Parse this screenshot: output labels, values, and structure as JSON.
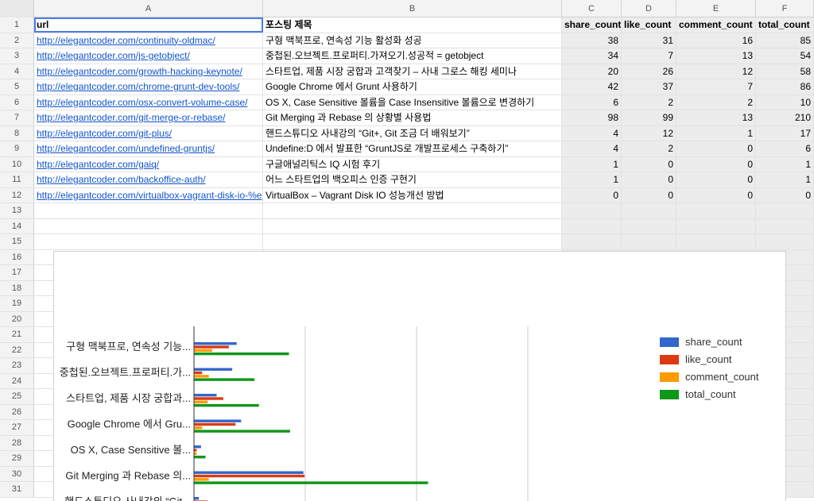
{
  "columns": [
    "A",
    "B",
    "C",
    "D",
    "E",
    "F"
  ],
  "headers": {
    "url": "url",
    "title": "포스팅 제목",
    "share_count": "share_count",
    "like_count": "like_count",
    "comment_count": "comment_count",
    "total_count": "total_count"
  },
  "rows": [
    {
      "url": "http://elegantcoder.com/continuity-oldmac/",
      "title": "구형 맥북프로, 연속성 기능 활성화 성공",
      "share": 38,
      "like": 31,
      "comment": 16,
      "total": 85
    },
    {
      "url": "http://elegantcoder.com/js-getobject/",
      "title": "중첩된.오브젝트.프로퍼티.가져오기.성공적 = getobject",
      "share": 34,
      "like": 7,
      "comment": 13,
      "total": 54
    },
    {
      "url": "http://elegantcoder.com/growth-hacking-keynote/",
      "title": "스타트업, 제품 시장 궁합과 고객찾기 – 사내 그로스 해킹 세미나",
      "share": 20,
      "like": 26,
      "comment": 12,
      "total": 58
    },
    {
      "url": "http://elegantcoder.com/chrome-grunt-dev-tools/",
      "title": "Google Chrome 에서 Grunt 사용하기",
      "share": 42,
      "like": 37,
      "comment": 7,
      "total": 86
    },
    {
      "url": "http://elegantcoder.com/osx-convert-volume-case/",
      "title": "OS X, Case Sensitive 볼륨을 Case Insensitive 볼륨으로 변경하기",
      "share": 6,
      "like": 2,
      "comment": 2,
      "total": 10
    },
    {
      "url": "http://elegantcoder.com/git-merge-or-rebase/",
      "title": "Git Merging 과 Rebase 의 상황별 사용법",
      "share": 98,
      "like": 99,
      "comment": 13,
      "total": 210
    },
    {
      "url": "http://elegantcoder.com/git-plus/",
      "title": "핸드스튜디오 사내강의 “Git+, Git 조금 더 배워보기”",
      "share": 4,
      "like": 12,
      "comment": 1,
      "total": 17
    },
    {
      "url": "http://elegantcoder.com/undefined-gruntjs/",
      "title": "Undefine:D 에서 발표한 “GruntJS로 개발프로세스 구축하기”",
      "share": 4,
      "like": 2,
      "comment": 0,
      "total": 6
    },
    {
      "url": "http://elegantcoder.com/gaiq/",
      "title": "구글애널리틱스 IQ 시험 후기",
      "share": 1,
      "like": 0,
      "comment": 0,
      "total": 1
    },
    {
      "url": "http://elegantcoder.com/backoffice-auth/",
      "title": "어느 스타트업의 백오피스 인증 구현기",
      "share": 1,
      "like": 0,
      "comment": 0,
      "total": 1
    },
    {
      "url": "http://elegantcoder.com/virtualbox-vagrant-disk-io-%e",
      "title": "VirtualBox – Vagrant Disk IO 성능개선 방법",
      "share": 0,
      "like": 0,
      "comment": 0,
      "total": 0
    }
  ],
  "row_numbers": [
    "1",
    "2",
    "3",
    "4",
    "5",
    "6",
    "7",
    "8",
    "9",
    "10",
    "11",
    "12",
    "13",
    "14",
    "15",
    "16",
    "17",
    "18",
    "19",
    "20",
    "21",
    "22",
    "23",
    "24",
    "25",
    "26",
    "27",
    "28",
    "29",
    "30",
    "31"
  ],
  "chart_data": {
    "type": "bar",
    "orientation": "horizontal",
    "categories": [
      "구형 맥북프로, 연속성 기능...",
      "중첩된.오브젝트.프로퍼티.가...",
      "스타트업, 제품 시장 궁합과...",
      "Google Chrome 에서 Gru...",
      "OS X, Case Sensitive 볼...",
      "Git Merging 과 Rebase 의...",
      "핸드스튜디오 사내강의 “Git..."
    ],
    "series": [
      {
        "name": "share_count",
        "color": "#3366cc",
        "values": [
          38,
          34,
          20,
          42,
          6,
          98,
          4
        ]
      },
      {
        "name": "like_count",
        "color": "#dc3912",
        "values": [
          31,
          7,
          26,
          37,
          2,
          99,
          12
        ]
      },
      {
        "name": "comment_count",
        "color": "#ff9900",
        "values": [
          16,
          13,
          12,
          7,
          2,
          13,
          1
        ]
      },
      {
        "name": "total_count",
        "color": "#109618",
        "values": [
          85,
          54,
          58,
          86,
          10,
          210,
          17
        ]
      }
    ],
    "xlim": [
      0,
      300
    ],
    "grid": true,
    "legend_position": "right"
  }
}
